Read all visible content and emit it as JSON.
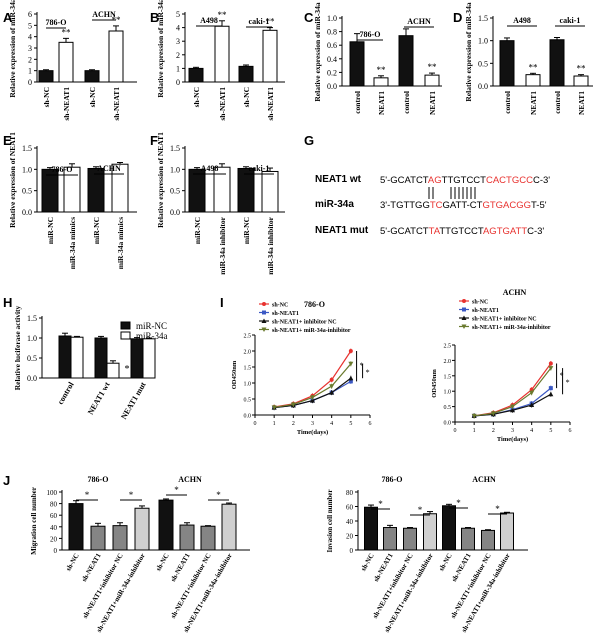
{
  "colors": {
    "black": "#111111",
    "white": "#ffffff",
    "gray": "#858585",
    "lightgray": "#d0d0d0",
    "red": "#e8322f",
    "blue": "#3b58c4",
    "darkgreen": "#6a7a2e",
    "accent_red": "#e8322f"
  },
  "panel_labels": [
    "A",
    "B",
    "C",
    "D",
    "E",
    "F",
    "G",
    "H",
    "I",
    "J"
  ],
  "chart_data": [
    {
      "id": "A",
      "type": "bar",
      "ylabel": "Relative expression of miR-34a",
      "ylim": [
        0,
        6
      ],
      "yticks": [
        0,
        1,
        2,
        3,
        4,
        5,
        6
      ],
      "categories": [
        "sh-NC",
        "sh-NEAT1",
        "sh-NC",
        "sh-NEAT1"
      ],
      "values": [
        1.0,
        3.5,
        1.0,
        4.5
      ],
      "errors": [
        0.08,
        0.35,
        0.08,
        0.45
      ],
      "fills": [
        "black",
        "white",
        "black",
        "white"
      ],
      "group_labels": [
        "786-O",
        "ACHN"
      ],
      "sig": [
        "",
        "**",
        "",
        "**"
      ]
    },
    {
      "id": "B",
      "type": "bar",
      "ylabel": "Relative expression of miR-34a",
      "ylim": [
        0,
        5
      ],
      "yticks": [
        0,
        1,
        2,
        3,
        4,
        5
      ],
      "categories": [
        "sh-NC",
        "sh-NEAT1",
        "sh-NC",
        "sh-NEAT1"
      ],
      "values": [
        1.0,
        4.1,
        1.15,
        3.8
      ],
      "errors": [
        0.08,
        0.4,
        0.1,
        0.2
      ],
      "fills": [
        "black",
        "white",
        "black",
        "white"
      ],
      "group_labels": [
        "A498",
        "caki-1"
      ],
      "sig": [
        "",
        "**",
        "",
        "**"
      ]
    },
    {
      "id": "C",
      "type": "bar",
      "ylabel": "Relative expression of miR-34a",
      "ylim": [
        0,
        1.0
      ],
      "yticks": [
        0.0,
        0.2,
        0.4,
        0.6,
        0.8,
        1.0
      ],
      "categories": [
        "control",
        "NEAT1",
        "control",
        "NEAT1"
      ],
      "values": [
        0.65,
        0.12,
        0.74,
        0.16
      ],
      "errors": [
        0.12,
        0.03,
        0.1,
        0.03
      ],
      "fills": [
        "black",
        "white",
        "black",
        "white"
      ],
      "group_labels": [
        "786-O",
        "ACHN"
      ],
      "sig": [
        "",
        "**",
        "",
        "**"
      ]
    },
    {
      "id": "D",
      "type": "bar",
      "ylabel": "Relative expression of miR-34a",
      "ylim": [
        0,
        1.5
      ],
      "yticks": [
        0.0,
        0.5,
        1.0,
        1.5
      ],
      "categories": [
        "control",
        "NEAT1",
        "control",
        "NEAT1"
      ],
      "values": [
        1.0,
        0.25,
        1.02,
        0.22
      ],
      "errors": [
        0.06,
        0.03,
        0.05,
        0.03
      ],
      "fills": [
        "black",
        "white",
        "black",
        "white"
      ],
      "group_labels": [
        "A498",
        "caki-1"
      ],
      "sig": [
        "",
        "**",
        "",
        "**"
      ]
    },
    {
      "id": "E",
      "type": "bar",
      "ylabel": "Relative expression of NEAT1",
      "ylim": [
        0,
        1.5
      ],
      "yticks": [
        0.0,
        0.5,
        1.0,
        1.5
      ],
      "categories": [
        "miR-NC",
        "miR-34a mimics",
        "miR-NC",
        "miR-34a mimics"
      ],
      "values": [
        1.0,
        1.05,
        1.02,
        1.12
      ],
      "errors": [
        0.04,
        0.08,
        0.04,
        0.04
      ],
      "fills": [
        "black",
        "white",
        "black",
        "white"
      ],
      "group_labels": [
        "786-O",
        "ACHN"
      ],
      "sig": [
        "",
        "",
        "",
        ""
      ]
    },
    {
      "id": "F",
      "type": "bar",
      "ylabel": "Relative expression of NEAT1",
      "ylim": [
        0,
        1.5
      ],
      "yticks": [
        0.0,
        0.5,
        1.0,
        1.5
      ],
      "categories": [
        "miR-NC",
        "miR-34a inhibitor",
        "miR-NC",
        "miR-34a inhibitor"
      ],
      "values": [
        1.0,
        1.05,
        1.02,
        0.95
      ],
      "errors": [
        0.04,
        0.08,
        0.04,
        0.08
      ],
      "fills": [
        "black",
        "white",
        "black",
        "white"
      ],
      "group_labels": [
        "A498",
        "caki-1"
      ],
      "sig": [
        "",
        "",
        "",
        ""
      ]
    },
    {
      "id": "H",
      "type": "bar",
      "ylabel": "Relative luciferase activity",
      "ylim": [
        0,
        1.5
      ],
      "yticks": [
        0.0,
        0.5,
        1.0,
        1.5
      ],
      "categories": [
        "control",
        "NEAT1 wt",
        "NEAT1 mut"
      ],
      "series": [
        {
          "name": "miR-NC",
          "values": [
            1.05,
            1.0,
            0.98
          ],
          "errors": [
            0.07,
            0.04,
            0.03
          ],
          "fill": "black"
        },
        {
          "name": "miR-34a",
          "values": [
            1.02,
            0.37,
            0.98
          ],
          "errors": [
            0.02,
            0.06,
            0.02
          ],
          "fill": "white"
        }
      ],
      "sig_text": "*"
    },
    {
      "id": "I-786O",
      "type": "line",
      "title": "786-O",
      "xlabel": "Time(days)",
      "ylabel": "OD450nm",
      "xlim": [
        0,
        6
      ],
      "ylim": [
        0,
        2.5
      ],
      "xticks": [
        0,
        1,
        2,
        3,
        4,
        5,
        6
      ],
      "yticks": [
        0.0,
        0.5,
        1.0,
        1.5,
        2.0,
        2.5
      ],
      "x": [
        1,
        2,
        3,
        4,
        5
      ],
      "series": [
        {
          "name": "sh-NC",
          "values": [
            0.25,
            0.35,
            0.6,
            1.1,
            2.0
          ],
          "color": "red",
          "marker": "circle"
        },
        {
          "name": "sh-NEAT1",
          "values": [
            0.23,
            0.3,
            0.45,
            0.7,
            1.05
          ],
          "color": "blue",
          "marker": "square"
        },
        {
          "name": "sh-NEAT1+ inhibitor NC",
          "values": [
            0.23,
            0.3,
            0.45,
            0.7,
            1.15
          ],
          "color": "black",
          "marker": "triangle"
        },
        {
          "name": "sh-NEAT1+ miR-34a-inhibitor",
          "values": [
            0.24,
            0.33,
            0.55,
            0.9,
            1.6
          ],
          "color": "darkgreen",
          "marker": "triangle-down"
        }
      ],
      "sig": [
        "*",
        "*"
      ]
    },
    {
      "id": "I-ACHN",
      "type": "line",
      "title": "ACHN",
      "xlabel": "Time(days)",
      "ylabel": "OD450nm",
      "xlim": [
        0,
        6
      ],
      "ylim": [
        0,
        2.5
      ],
      "xticks": [
        0,
        1,
        2,
        3,
        4,
        5,
        6
      ],
      "yticks": [
        0.0,
        0.5,
        1.0,
        1.5,
        2.0,
        2.5
      ],
      "x": [
        1,
        2,
        3,
        4,
        5
      ],
      "series": [
        {
          "name": "sh-NC",
          "values": [
            0.2,
            0.3,
            0.55,
            1.05,
            1.9
          ],
          "color": "red",
          "marker": "circle"
        },
        {
          "name": "sh-NEAT1",
          "values": [
            0.2,
            0.25,
            0.4,
            0.6,
            1.1
          ],
          "color": "blue",
          "marker": "square"
        },
        {
          "name": "sh-NEAT1+ inhibitor NC",
          "values": [
            0.2,
            0.25,
            0.38,
            0.55,
            0.9
          ],
          "color": "black",
          "marker": "triangle"
        },
        {
          "name": "sh-NEAT1+ miR-34a-inhibitor",
          "values": [
            0.2,
            0.28,
            0.5,
            0.95,
            1.75
          ],
          "color": "darkgreen",
          "marker": "triangle-down"
        }
      ],
      "sig": [
        "*",
        "*"
      ]
    },
    {
      "id": "J-migration",
      "type": "bar",
      "ylabel": "Migration cell number",
      "ylim": [
        0,
        100
      ],
      "yticks": [
        0,
        20,
        40,
        60,
        80,
        100
      ],
      "categories": [
        "sh-NC",
        "sh-NEAT1",
        "sh-NEAT1+inhibitor NC",
        "sh-NEAT1+miR-34a-inhibitor",
        "sh-NC",
        "sh-NEAT1",
        "sh-NEAT1+inhibitor NC",
        "sh-NEAT1+miR-34a-inhibitor"
      ],
      "values": [
        80,
        41,
        42,
        72,
        86,
        43,
        41,
        79
      ],
      "errors": [
        5,
        5,
        5,
        4,
        2,
        4,
        1,
        2
      ],
      "fills": [
        "black",
        "gray",
        "gray",
        "lightgray",
        "black",
        "gray",
        "gray",
        "lightgray"
      ],
      "group_labels": [
        "786-O",
        "ACHN"
      ],
      "sig_text": "*"
    },
    {
      "id": "J-invasion",
      "type": "bar",
      "ylabel": "Invasion cell number",
      "ylim": [
        0,
        80
      ],
      "yticks": [
        0,
        20,
        40,
        60,
        80
      ],
      "categories": [
        "sh-NC",
        "sh-NEAT1",
        "sh-NEAT1+inhibitor NC",
        "sh-NEAT1+miR-34a-inhibitor",
        "sh-NC",
        "sh-NEAT1",
        "sh-NEAT1+inhibitor NC",
        "sh-NEAT1+miR-34a-inhibitor"
      ],
      "values": [
        59,
        31,
        30,
        50,
        61,
        30,
        27,
        51
      ],
      "errors": [
        3,
        3,
        1,
        3,
        2,
        1,
        1,
        1
      ],
      "fills": [
        "black",
        "gray",
        "gray",
        "lightgray",
        "black",
        "gray",
        "gray",
        "lightgray"
      ],
      "group_labels": [
        "786-O",
        "ACHN"
      ],
      "sig_text": "*"
    }
  ],
  "sequences": {
    "wt": {
      "name": "NEAT1 wt",
      "parts": [
        [
          "5'-GCATCT",
          ""
        ],
        [
          "AG",
          "r"
        ],
        [
          "TTGTCCT",
          ""
        ],
        [
          "CACTGCC",
          "r"
        ],
        [
          "C-3'",
          ""
        ]
      ]
    },
    "mir": {
      "name": "miR-34a",
      "parts": [
        [
          "3'-TGTTGG",
          ""
        ],
        [
          "TC",
          "r"
        ],
        [
          "GATT-CT",
          ""
        ],
        [
          "GTGACGG",
          "r"
        ],
        [
          "T-5'",
          ""
        ]
      ]
    },
    "mut": {
      "name": "NEAT1 mut",
      "parts": [
        [
          "5'-GCATCT",
          ""
        ],
        [
          "TA",
          "r"
        ],
        [
          "TTGTCCT",
          ""
        ],
        [
          "AGTGATT",
          "r"
        ],
        [
          "C-3'",
          ""
        ]
      ]
    }
  }
}
